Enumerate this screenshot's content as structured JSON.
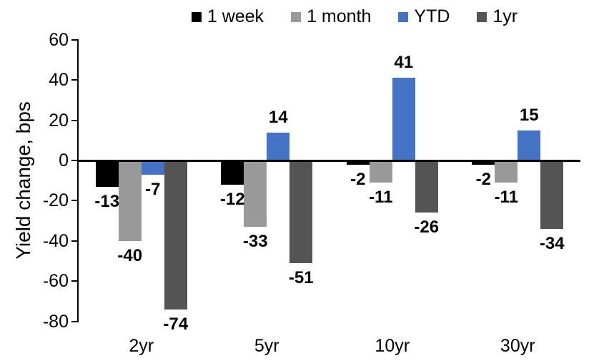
{
  "chart_data": {
    "type": "bar",
    "title": "",
    "ylabel": "Yield change, bps",
    "xlabel": "",
    "ylim": [
      -80,
      60
    ],
    "ytick_step": 20,
    "yticks": [
      60,
      40,
      20,
      0,
      -20,
      -40,
      -60,
      -80
    ],
    "grid": false,
    "legend_position": "top",
    "categories": [
      "2yr",
      "5yr",
      "10yr",
      "30yr"
    ],
    "series": [
      {
        "name": "1 week",
        "color": "#000000",
        "values": [
          -13,
          -12,
          -2,
          -2
        ]
      },
      {
        "name": "1 month",
        "color": "#999999",
        "values": [
          -40,
          -33,
          -11,
          -11
        ]
      },
      {
        "name": "YTD",
        "color": "#4472C4",
        "values": [
          -7,
          14,
          41,
          15
        ]
      },
      {
        "name": "1yr",
        "color": "#545454",
        "values": [
          -74,
          -51,
          -26,
          -34
        ]
      }
    ]
  }
}
